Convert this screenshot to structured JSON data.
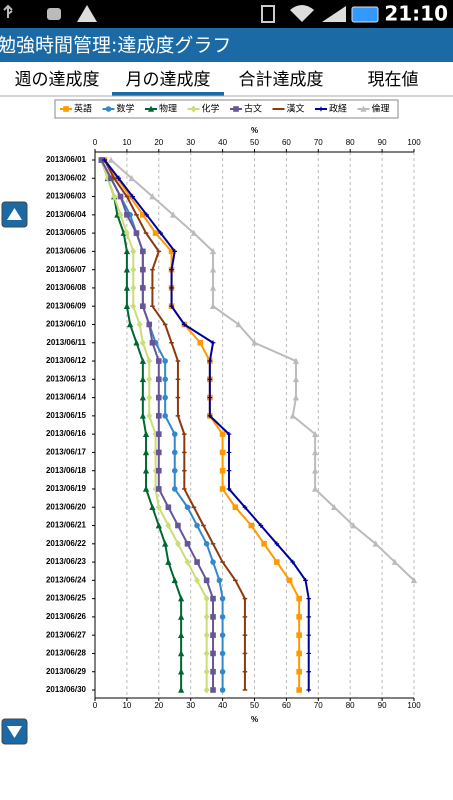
{
  "ui": {
    "status_time": "21:10",
    "app_title": "勉強時間管理:達成度グラフ",
    "tabs": [
      "週の達成度",
      "月の達成度",
      "合計達成度",
      "現在値"
    ],
    "selected_tab": 1
  },
  "chart_data": {
    "type": "line",
    "orientation": "horizontal",
    "xlabel": "%",
    "categories": [
      "2013/06/01",
      "2013/06/02",
      "2013/06/03",
      "2013/06/04",
      "2013/06/05",
      "2013/06/06",
      "2013/06/07",
      "2013/06/08",
      "2013/06/09",
      "2013/06/10",
      "2013/06/11",
      "2013/06/12",
      "2013/06/13",
      "2013/06/14",
      "2013/06/15",
      "2013/06/16",
      "2013/06/17",
      "2013/06/18",
      "2013/06/19",
      "2013/06/20",
      "2013/06/21",
      "2013/06/22",
      "2013/06/23",
      "2013/06/24",
      "2013/06/25",
      "2013/06/26",
      "2013/06/27",
      "2013/06/28",
      "2013/06/29",
      "2013/06/30"
    ],
    "xlim": [
      0,
      100
    ],
    "xticks": [
      0,
      10,
      20,
      30,
      40,
      50,
      60,
      70,
      80,
      90,
      100
    ],
    "grid": true,
    "series": [
      {
        "name": "英語",
        "color": "#ff9900",
        "marker": "square",
        "values": [
          3,
          7,
          11,
          15,
          19,
          24,
          24,
          24,
          24,
          28,
          33,
          36,
          36,
          36,
          36,
          40,
          40,
          40,
          40,
          44,
          49,
          53,
          57,
          61,
          64,
          64,
          64,
          64,
          64,
          64
        ]
      },
      {
        "name": "数学",
        "color": "#3388cc",
        "marker": "circle",
        "values": [
          2,
          5,
          8,
          11,
          13,
          15,
          15,
          15,
          15,
          17,
          19,
          22,
          22,
          22,
          22,
          25,
          25,
          25,
          25,
          29,
          32,
          35,
          37,
          39,
          40,
          40,
          40,
          40,
          40,
          40
        ]
      },
      {
        "name": "物理",
        "color": "#006633",
        "marker": "triangle",
        "values": [
          2,
          4,
          6,
          7,
          9,
          10,
          10,
          10,
          10,
          11,
          13,
          15,
          15,
          15,
          15,
          16,
          16,
          16,
          16,
          18,
          20,
          22,
          23,
          25,
          27,
          27,
          27,
          27,
          27,
          27
        ]
      },
      {
        "name": "化学",
        "color": "#ccdd77",
        "marker": "diamond",
        "values": [
          2,
          4,
          6,
          8,
          10,
          12,
          12,
          12,
          12,
          14,
          15,
          17,
          17,
          17,
          17,
          19,
          19,
          19,
          19,
          20,
          23,
          26,
          29,
          32,
          35,
          35,
          35,
          35,
          35,
          35
        ]
      },
      {
        "name": "古文",
        "color": "#665599",
        "marker": "square",
        "values": [
          2,
          5,
          8,
          10,
          13,
          15,
          15,
          15,
          15,
          17,
          18,
          20,
          20,
          20,
          20,
          20,
          20,
          20,
          20,
          23,
          26,
          29,
          32,
          35,
          37,
          37,
          37,
          37,
          37,
          37
        ]
      },
      {
        "name": "漢文",
        "color": "#8b3a0e",
        "marker": "dash",
        "values": [
          3,
          6,
          10,
          13,
          16,
          20,
          18,
          18,
          18,
          22,
          24,
          26,
          26,
          26,
          26,
          28,
          28,
          28,
          28,
          31,
          34,
          37,
          40,
          44,
          47,
          47,
          47,
          47,
          47,
          47
        ]
      },
      {
        "name": "政経",
        "color": "#000099",
        "marker": "plus",
        "values": [
          3,
          7.4,
          11.8,
          16.2,
          20.6,
          25,
          24,
          24,
          24,
          28,
          37,
          36,
          36,
          36,
          36,
          42,
          42,
          42,
          42,
          47,
          52,
          57,
          62,
          66,
          67,
          67,
          67,
          67,
          67,
          67
        ]
      },
      {
        "name": "倫理",
        "color": "#bbbbbb",
        "marker": "triangle",
        "values": [
          5,
          11.5,
          18,
          24.5,
          31,
          37,
          37,
          37,
          37,
          45,
          50,
          63,
          63,
          63,
          62,
          69,
          69,
          69,
          69,
          75,
          81,
          88,
          94,
          100,
          null,
          null,
          null,
          null,
          null,
          null
        ]
      }
    ]
  }
}
